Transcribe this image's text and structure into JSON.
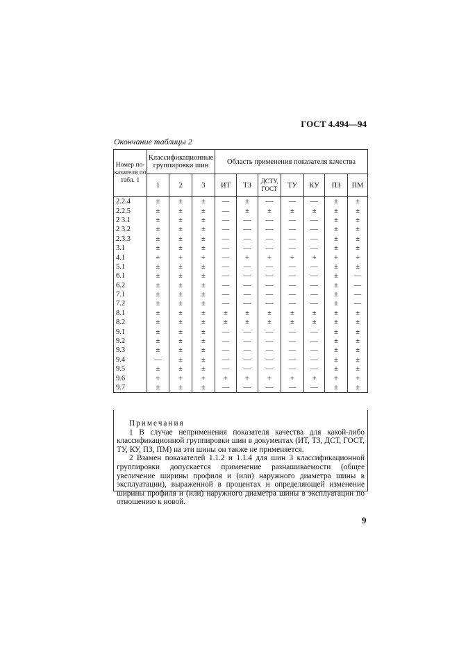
{
  "header": {
    "standard": "ГОСТ 4.494—94",
    "caption": "Окончание таблицы 2"
  },
  "table": {
    "col_number": "Номер по-казателя по табл. 1",
    "group_classification": "Классификационные группировки шин",
    "group_scope": "Область применения показателя качества",
    "columns": [
      "1",
      "2",
      "3",
      "ИТ",
      "ТЗ",
      "ДСТУ, ГОСТ",
      "ТУ",
      "КУ",
      "ПЗ",
      "ПМ"
    ],
    "rows": [
      [
        "2.2.4",
        "±",
        "±",
        "±",
        "—",
        "±",
        "—",
        "—",
        "—",
        "±",
        "±"
      ],
      [
        "2.2.5",
        "±",
        "±",
        "±",
        "—",
        "±",
        "±",
        "±",
        "±",
        "±",
        "±"
      ],
      [
        "2 3.1",
        "±",
        "±",
        "±",
        "—",
        "—",
        "—",
        "—",
        "—",
        "±",
        "±"
      ],
      [
        "2 3.2",
        "±",
        "±",
        "±",
        "—",
        "—",
        "—",
        "—",
        "—",
        "±",
        "±"
      ],
      [
        "2.3.3",
        "±",
        "±",
        "±",
        "—",
        "—",
        "—",
        "—",
        "—",
        "±",
        "±"
      ],
      [
        "3.1",
        "±",
        "±",
        "±",
        "—",
        "—",
        "—",
        "—",
        "—",
        "±",
        "±"
      ],
      [
        "4.1",
        "+",
        "+",
        "+",
        "—",
        "+",
        "+",
        "+",
        "+",
        "+",
        "+"
      ],
      [
        "5.1",
        "±",
        "±",
        "±",
        "—",
        "—",
        "—",
        "—",
        "—",
        "±",
        "±"
      ],
      [
        "6.1",
        "±",
        "±",
        "±",
        "—",
        "—",
        "—",
        "—",
        "—",
        "±",
        "—"
      ],
      [
        "6.2",
        "±",
        "±",
        "±",
        "—",
        "—",
        "—",
        "—",
        "—",
        "±",
        "—"
      ],
      [
        "7.1",
        "±",
        "±",
        "±",
        "—",
        "—",
        "—",
        "—",
        "—",
        "±",
        "—"
      ],
      [
        "7.2",
        "±",
        "±",
        "±",
        "—",
        "—",
        "—",
        "—",
        "—",
        "±",
        "—"
      ],
      [
        "8.1",
        "±",
        "±",
        "±",
        "±",
        "±",
        "±",
        "±",
        "±",
        "±",
        "±"
      ],
      [
        "8.2",
        "±",
        "±",
        "±",
        "±",
        "±",
        "±",
        "±",
        "±",
        "±",
        "±"
      ],
      [
        "9.1",
        "±",
        "±",
        "±",
        "—",
        "—",
        "—",
        "—",
        "—",
        "±",
        "±"
      ],
      [
        "9.2",
        "±",
        "±",
        "±",
        "—",
        "—",
        "—",
        "—",
        "—",
        "±",
        "±"
      ],
      [
        "9.3",
        "±",
        "±",
        "±",
        "—",
        "—",
        "—",
        "—",
        "—",
        "±",
        "±"
      ],
      [
        "9.4",
        "—",
        "±",
        "±",
        "—",
        "—",
        "—",
        "—",
        "—",
        "±",
        "±"
      ],
      [
        "9.5",
        "±",
        "±",
        "±",
        "—",
        "—",
        "—",
        "—",
        "—",
        "±",
        "±"
      ],
      [
        "9.6",
        "+",
        "+",
        "+",
        "+",
        "+",
        "+",
        "+",
        "+",
        "+",
        "+"
      ],
      [
        "9.7",
        "±",
        "±",
        "±",
        "—",
        "—",
        "—",
        "—",
        "—",
        "±",
        "±"
      ]
    ]
  },
  "notes": {
    "title": "Примечания",
    "note1": "1 В случае неприменения показателя качества для какой-либо классификационной группировки шин в документах (ИТ, ТЗ, ДСТ, ГОСТ, ТУ, КУ, ПЗ, ПМ) на эти шины он также не применяется.",
    "note2": "2 Взамен показателей 1.1.2 и 1.1.4 для шин 3 классификационной группировки допускается применение разнашиваемости (общее увеличение ширины профиля и (или) наружного диаметра шины в эксплуатации), выраженной в процентах и определяющей изменение ширины профиля и (или) наружного диаметра шины в эксплуатации по отношению к новой."
  },
  "page_number": "9"
}
